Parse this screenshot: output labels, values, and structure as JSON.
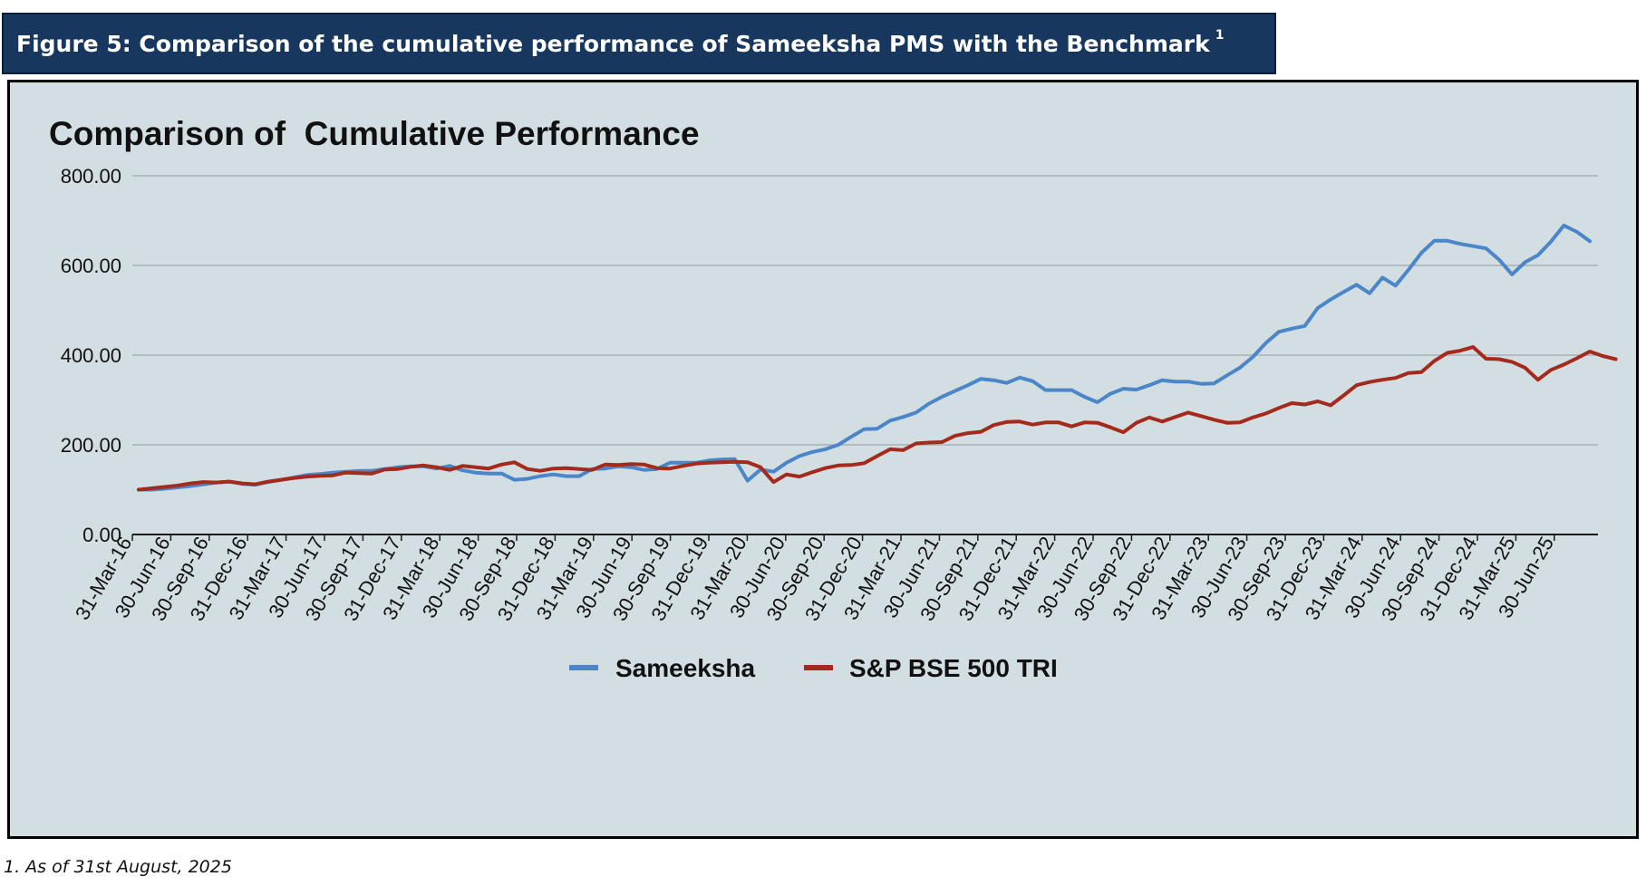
{
  "header": {
    "title": "Figure 5: Comparison of the cumulative performance of Sameeksha PMS with the Benchmark",
    "footnote_marker": "1"
  },
  "footnote": "1.  As of 31st August, 2025",
  "colors": {
    "header_bg": "#17375e",
    "plot_bg": "#d3dee3",
    "sameeksha": "#4a86c8",
    "benchmark": "#a32a1c"
  },
  "chart_data": {
    "type": "line",
    "title": "Comparison of  Cumulative Performance",
    "xlabel": "",
    "ylabel": "",
    "ylim": [
      0,
      800
    ],
    "yticks": [
      "0.00",
      "200.00",
      "400.00",
      "600.00",
      "800.00"
    ],
    "grid": true,
    "legend_position": "bottom",
    "xtick_labels": [
      "31-Mar-16",
      "30-Jun-16",
      "30-Sep-16",
      "31-Dec-16",
      "31-Mar-17",
      "30-Jun-17",
      "30-Sep-17",
      "31-Dec-17",
      "31-Mar-18",
      "30-Jun-18",
      "30-Sep-18",
      "31-Dec-18",
      "31-Mar-19",
      "30-Jun-19",
      "30-Sep-19",
      "31-Dec-19",
      "31-Mar-20",
      "30-Jun-20",
      "30-Sep-20",
      "31-Dec-20",
      "31-Mar-21",
      "30-Jun-21",
      "30-Sep-21",
      "31-Dec-21",
      "31-Mar-22",
      "30-Jun-22",
      "30-Sep-22",
      "31-Dec-22",
      "31-Mar-23",
      "30-Jun-23",
      "30-Sep-23",
      "31-Dec-23",
      "31-Mar-24",
      "30-Jun-24",
      "30-Sep-24",
      "31-Dec-24",
      "31-Mar-25",
      "30-Jun-25"
    ],
    "x_first": "31-Mar-16",
    "x_last": "31-Aug-25",
    "series": [
      {
        "name": "Sameeksha",
        "color": "#4a86c8",
        "values": [
          100,
          100,
          102,
          105,
          108,
          112,
          116,
          118,
          113,
          111,
          117,
          122,
          127,
          133,
          135,
          138,
          140,
          142,
          142,
          146,
          150,
          152,
          152,
          147,
          153,
          143,
          138,
          136,
          136,
          122,
          124,
          130,
          134,
          130,
          130,
          146,
          147,
          152,
          150,
          144,
          146,
          160,
          160,
          160,
          165,
          167,
          168,
          120,
          145,
          140,
          160,
          175,
          184,
          190,
          200,
          218,
          235,
          236,
          254,
          262,
          272,
          292,
          307,
          320,
          333,
          347,
          344,
          338,
          350,
          342,
          322,
          322,
          322,
          307,
          295,
          314,
          325,
          323,
          333,
          344,
          341,
          341,
          336,
          337,
          355,
          372,
          396,
          427,
          452,
          459,
          465,
          505,
          524,
          541,
          557,
          538,
          573,
          555,
          590,
          628,
          655,
          655,
          648,
          643,
          638,
          613,
          580,
          607,
          623,
          653,
          689,
          675,
          654
        ]
      },
      {
        "name": "S&P BSE 500 TRI",
        "color": "#a32a1c",
        "values": [
          100,
          103,
          106,
          109,
          114,
          117,
          116,
          118,
          114,
          112,
          118,
          122,
          126,
          129,
          131,
          132,
          138,
          137,
          136,
          145,
          146,
          151,
          154,
          150,
          144,
          153,
          150,
          147,
          156,
          161,
          146,
          142,
          147,
          148,
          146,
          144,
          156,
          155,
          157,
          156,
          148,
          147,
          153,
          158,
          160,
          161,
          162,
          161,
          150,
          117,
          134,
          129,
          139,
          148,
          154,
          155,
          159,
          175,
          190,
          188,
          203,
          205,
          206,
          220,
          226,
          229,
          244,
          251,
          252,
          245,
          250,
          250,
          241,
          250,
          249,
          239,
          228,
          249,
          261,
          252,
          262,
          272,
          264,
          256,
          249,
          250,
          261,
          270,
          282,
          293,
          290,
          297,
          288,
          310,
          333,
          340,
          345,
          349,
          360,
          362,
          387,
          405,
          410,
          418,
          392,
          391,
          385,
          372,
          345,
          367,
          379,
          393,
          408,
          398,
          391
        ]
      }
    ]
  }
}
